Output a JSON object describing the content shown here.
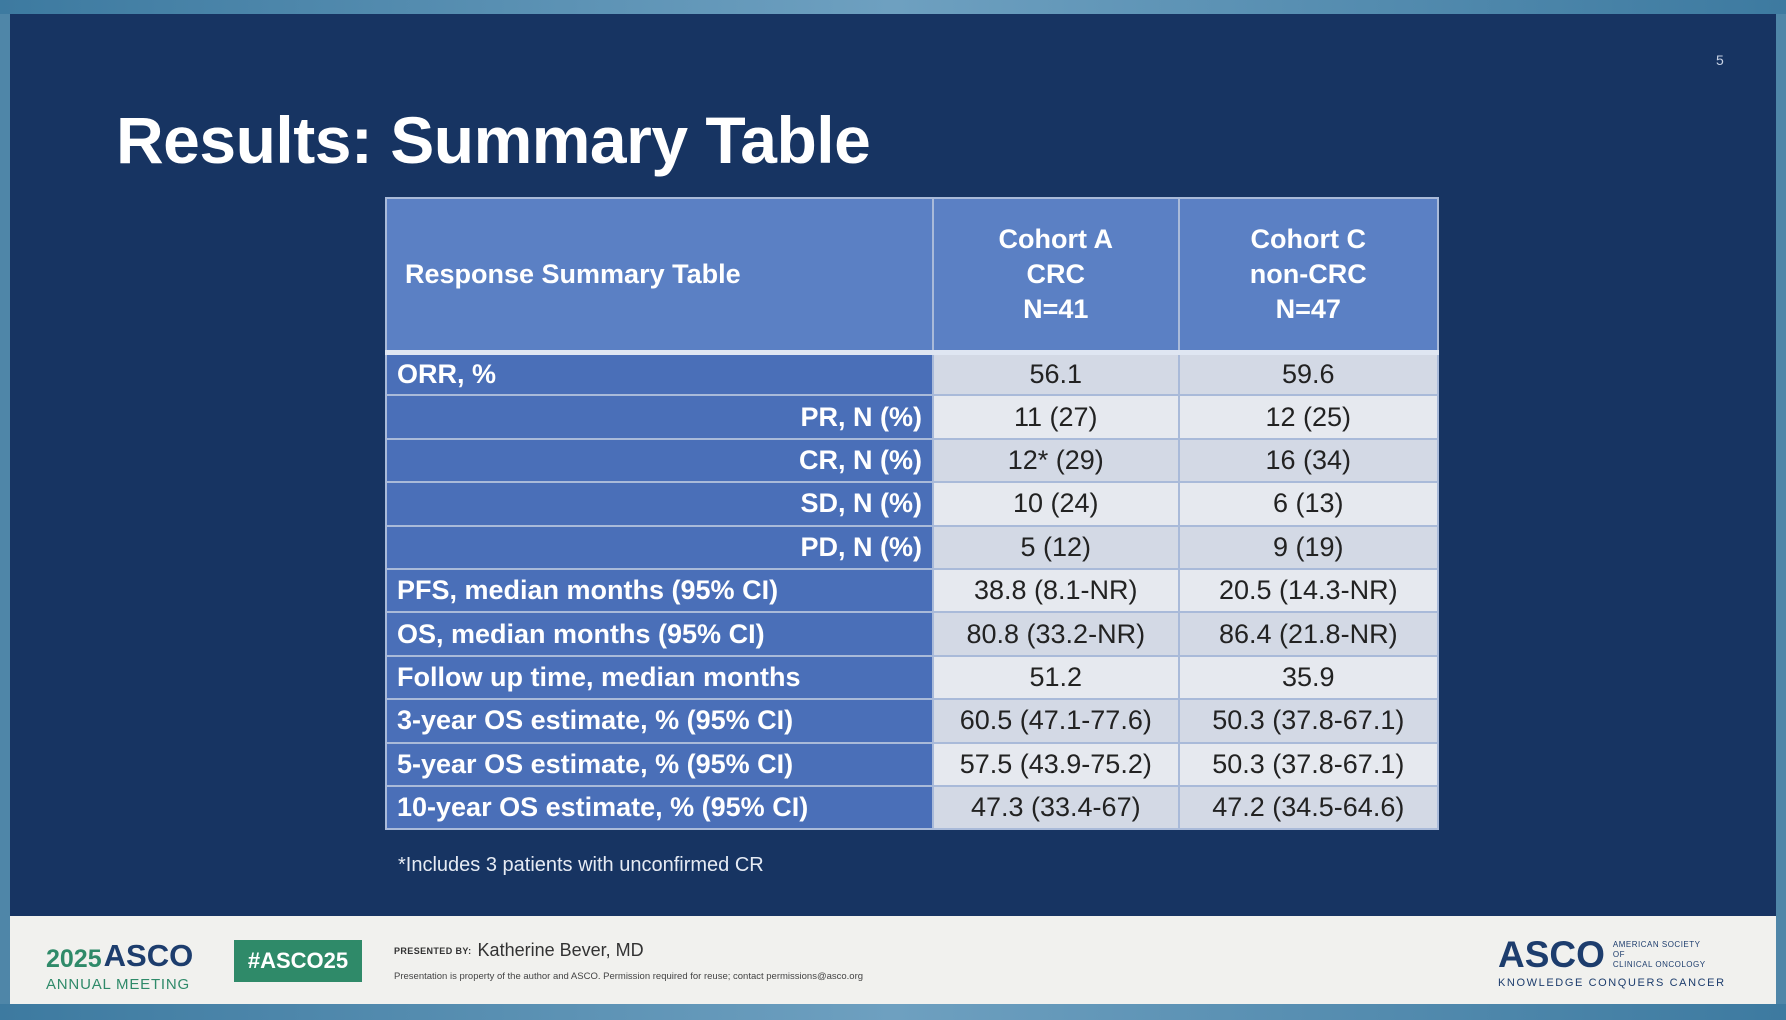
{
  "slide": {
    "number": "5",
    "title": "Results: Summary Table"
  },
  "table": {
    "header": {
      "label": "Response Summary Table",
      "columns": [
        {
          "line1": "Cohort A",
          "line2": "CRC",
          "line3": "N=41"
        },
        {
          "line1": "Cohort C",
          "line2": "non-CRC",
          "line3": "N=47"
        }
      ]
    },
    "rows": [
      {
        "label": "ORR, %",
        "a": "56.1",
        "c": "59.6"
      },
      {
        "label": "PR, N (%)",
        "a": "11 (27)",
        "c": "12 (25)"
      },
      {
        "label": "CR, N (%)",
        "a": "12* (29)",
        "c": "16 (34)"
      },
      {
        "label": "SD, N (%)",
        "a": "10 (24)",
        "c": "6 (13)"
      },
      {
        "label": "PD, N (%)",
        "a": "5 (12)",
        "c": "9 (19)"
      },
      {
        "label": "PFS, median months (95% CI)",
        "a": "38.8 (8.1-NR)",
        "c": "20.5 (14.3-NR)"
      },
      {
        "label": "OS, median months (95% CI)",
        "a": "80.8 (33.2-NR)",
        "c": "86.4 (21.8-NR)"
      },
      {
        "label": "Follow up time, median months",
        "a": "51.2",
        "c": "35.9"
      },
      {
        "label": "3-year OS estimate, % (95% CI)",
        "a": "60.5 (47.1-77.6)",
        "c": "50.3 (37.8-67.1)"
      },
      {
        "label": "5-year OS estimate, % (95% CI)",
        "a": "57.5 (43.9-75.2)",
        "c": "50.3 (37.8-67.1)"
      },
      {
        "label": "10-year OS estimate, % (95% CI)",
        "a": "47.3 (33.4-67)",
        "c": "47.2 (34.5-64.6)"
      }
    ],
    "footnote": "*Includes 3 patients with unconfirmed CR"
  },
  "footer": {
    "meeting_year": "2025",
    "meeting_org": "ASCO",
    "meeting_sub": "ANNUAL MEETING",
    "hashtag": "#ASCO25",
    "presented_by": "PRESENTED BY:",
    "presenter": "Katherine Bever, MD",
    "property_note": "Presentation is property of the author and ASCO. Permission required for reuse; contact permissions@asco.org",
    "asco_logo": "ASCO",
    "asco_society_line1": "AMERICAN SOCIETY OF",
    "asco_society_line2": "CLINICAL ONCOLOGY",
    "asco_tagline": "KNOWLEDGE CONQUERS CANCER"
  },
  "colors": {
    "slide_bg": "#173462",
    "header_cell": "#5b80c4",
    "label_cell": "#4a6fb8",
    "value_cell_odd": "#d3d9e5",
    "value_cell_even": "#e6e9ef",
    "asco_green": "#2f8a69",
    "asco_navy": "#1d3d6d"
  }
}
